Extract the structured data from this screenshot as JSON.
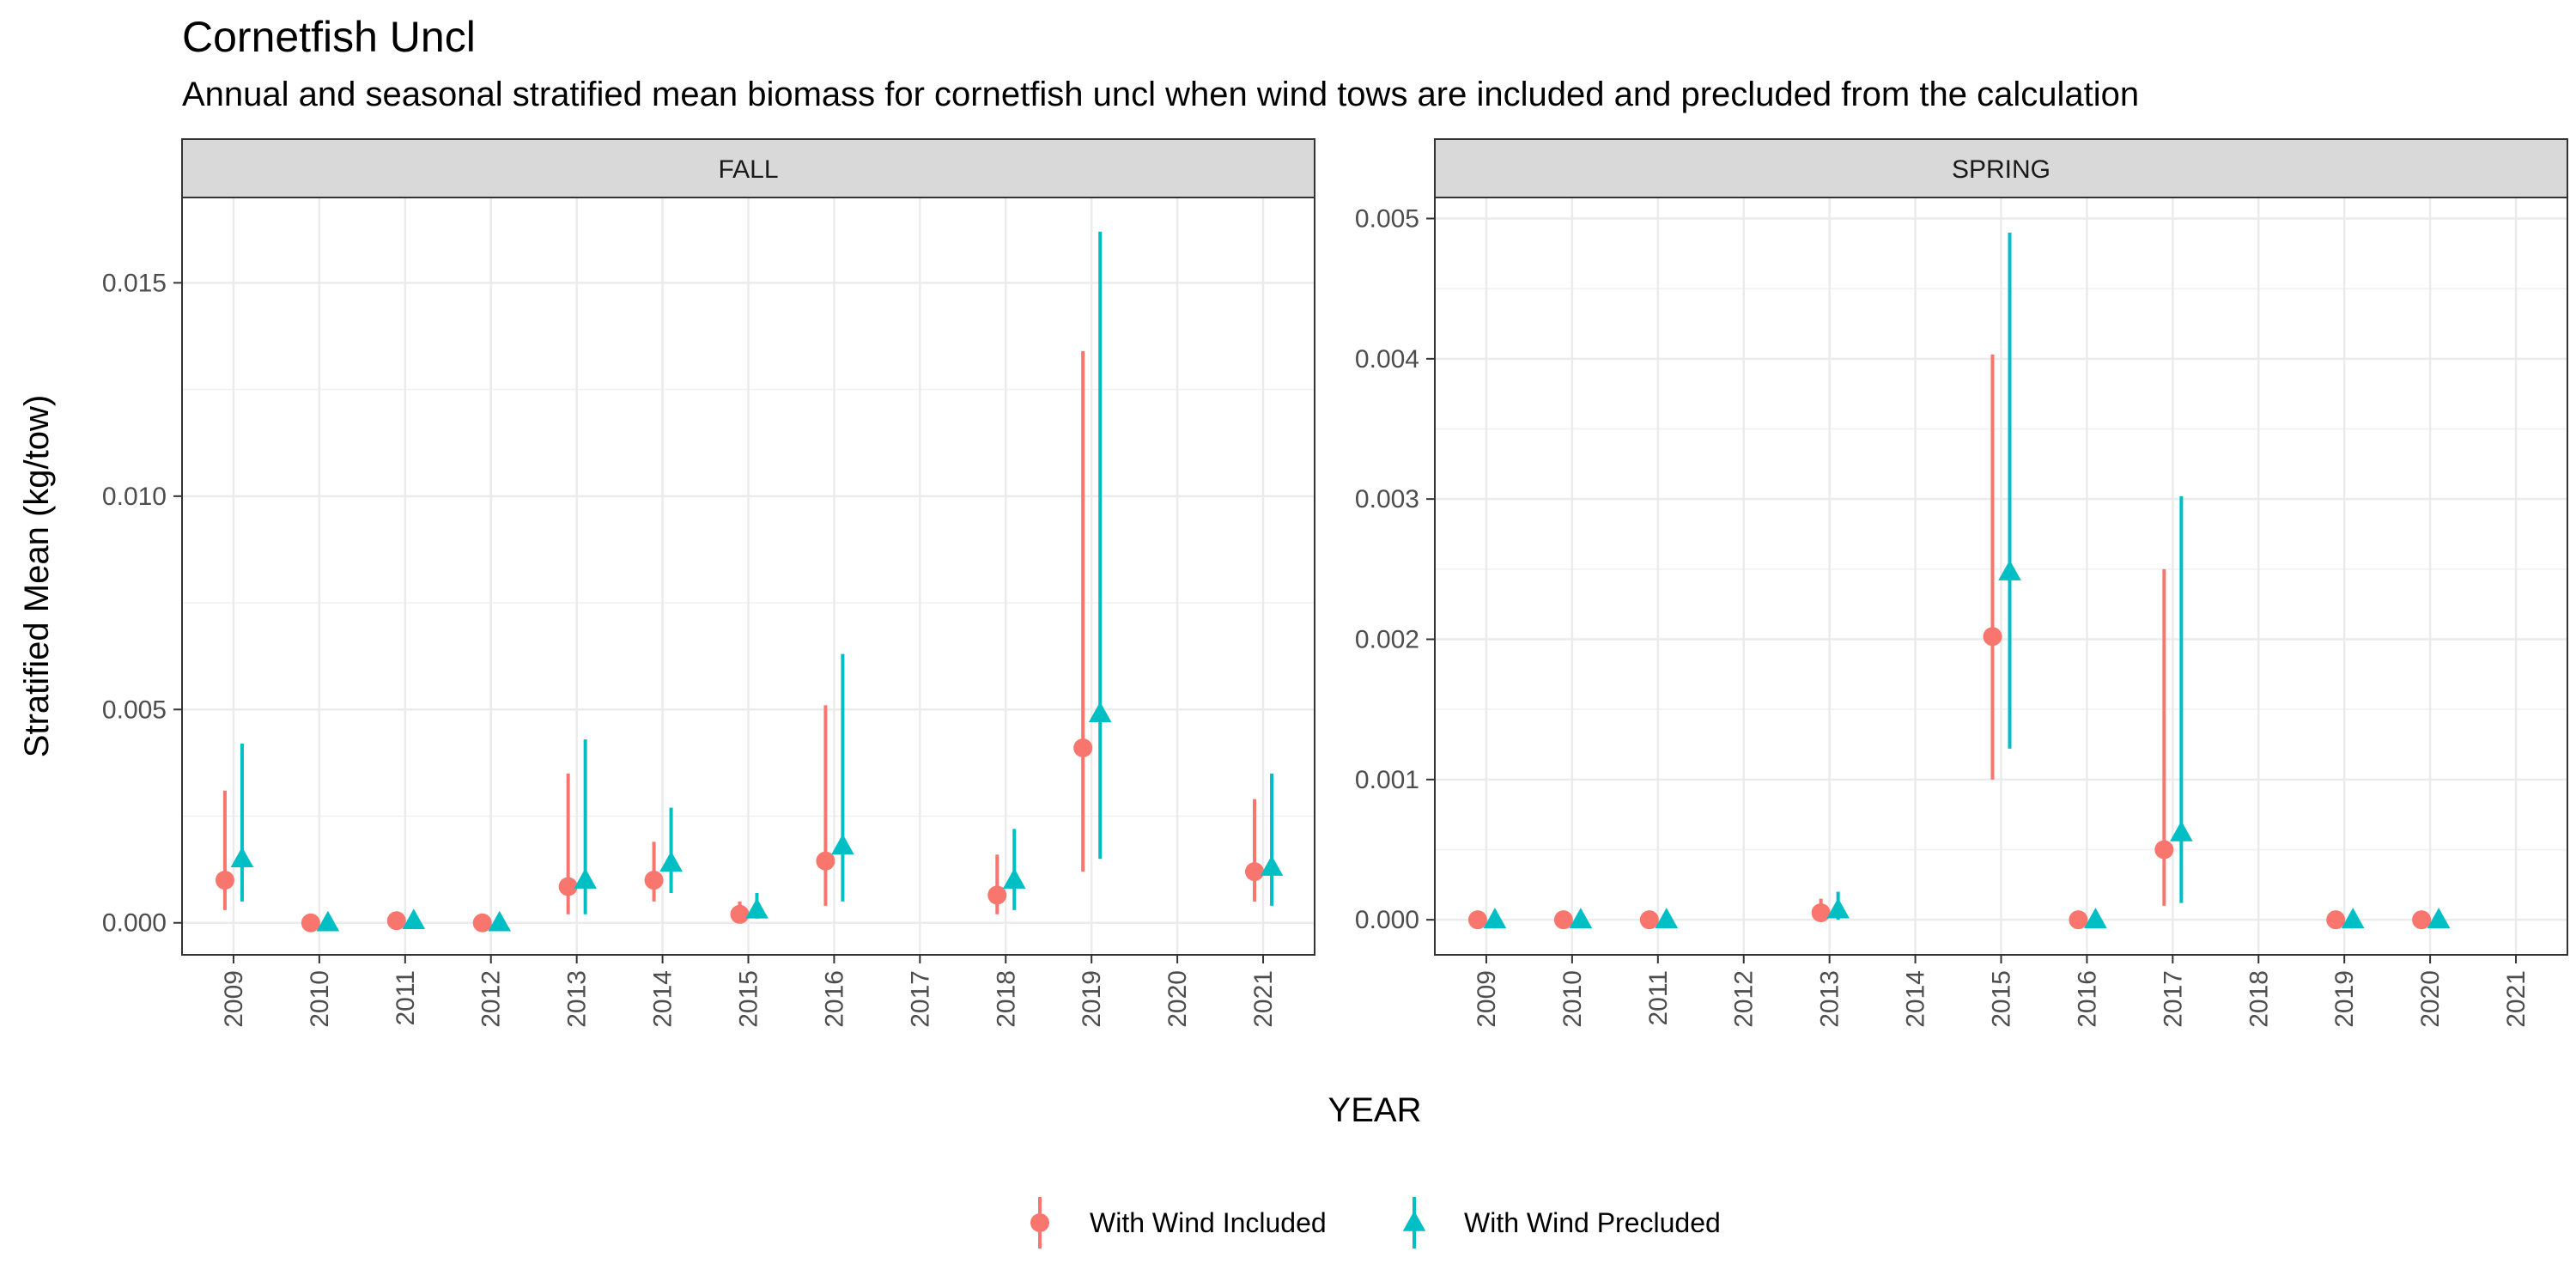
{
  "title": "Cornetfish Uncl",
  "subtitle": "Annual and seasonal stratified mean biomass for cornetfish uncl when wind tows are included and precluded from the calculation",
  "chart_data": {
    "type": "scatter",
    "xlabel": "YEAR",
    "ylabel": "Stratified Mean (kg/tow)",
    "grid": true,
    "legend_position": "bottom",
    "series_styles": [
      {
        "name": "With Wind Included",
        "color": "#F8766D",
        "marker": "circle"
      },
      {
        "name": "With Wind Precluded",
        "color": "#00BFC4",
        "marker": "triangle"
      }
    ],
    "panels": [
      {
        "strip": "FALL",
        "ylim": [
          -0.00075,
          0.017
        ],
        "yticks": [
          0.0,
          0.005,
          0.01,
          0.015
        ],
        "ytick_labels": [
          "0.000",
          "0.005",
          "0.010",
          "0.015"
        ],
        "x_categories": [
          "2009",
          "2010",
          "2011",
          "2012",
          "2013",
          "2014",
          "2015",
          "2016",
          "2017",
          "2018",
          "2019",
          "2020",
          "2021"
        ],
        "series": [
          {
            "name": "With Wind Included",
            "points": [
              {
                "x": "2009",
                "y": 0.001,
                "lo": 0.0003,
                "hi": 0.0031
              },
              {
                "x": "2010",
                "y": 0.0,
                "lo": 0.0,
                "hi": 0.0
              },
              {
                "x": "2011",
                "y": 5e-05,
                "lo": 5e-05,
                "hi": 5e-05
              },
              {
                "x": "2012",
                "y": 0.0,
                "lo": 0.0,
                "hi": 0.0
              },
              {
                "x": "2013",
                "y": 0.00085,
                "lo": 0.0002,
                "hi": 0.0035
              },
              {
                "x": "2014",
                "y": 0.001,
                "lo": 0.0005,
                "hi": 0.0019
              },
              {
                "x": "2015",
                "y": 0.0002,
                "lo": 0.0001,
                "hi": 0.0005
              },
              {
                "x": "2016",
                "y": 0.00145,
                "lo": 0.0004,
                "hi": 0.0051
              },
              {
                "x": "2018",
                "y": 0.00065,
                "lo": 0.0002,
                "hi": 0.0016
              },
              {
                "x": "2019",
                "y": 0.0041,
                "lo": 0.0012,
                "hi": 0.0134
              },
              {
                "x": "2021",
                "y": 0.0012,
                "lo": 0.0005,
                "hi": 0.0029
              }
            ]
          },
          {
            "name": "With Wind Precluded",
            "points": [
              {
                "x": "2009",
                "y": 0.0015,
                "lo": 0.0005,
                "hi": 0.0042
              },
              {
                "x": "2010",
                "y": 0.0,
                "lo": 0.0,
                "hi": 0.0
              },
              {
                "x": "2011",
                "y": 5e-05,
                "lo": 5e-05,
                "hi": 5e-05
              },
              {
                "x": "2012",
                "y": 0.0,
                "lo": 0.0,
                "hi": 0.0
              },
              {
                "x": "2013",
                "y": 0.001,
                "lo": 0.0002,
                "hi": 0.0043
              },
              {
                "x": "2014",
                "y": 0.0014,
                "lo": 0.0007,
                "hi": 0.0027
              },
              {
                "x": "2015",
                "y": 0.0003,
                "lo": 0.0001,
                "hi": 0.0007
              },
              {
                "x": "2016",
                "y": 0.0018,
                "lo": 0.0005,
                "hi": 0.0063
              },
              {
                "x": "2018",
                "y": 0.001,
                "lo": 0.0003,
                "hi": 0.0022
              },
              {
                "x": "2019",
                "y": 0.0049,
                "lo": 0.0015,
                "hi": 0.0162
              },
              {
                "x": "2021",
                "y": 0.0013,
                "lo": 0.0004,
                "hi": 0.0035
              }
            ]
          }
        ]
      },
      {
        "strip": "SPRING",
        "ylim": [
          -0.00025,
          0.00515
        ],
        "yticks": [
          0.0,
          0.001,
          0.002,
          0.003,
          0.004,
          0.005
        ],
        "ytick_labels": [
          "0.000",
          "0.001",
          "0.002",
          "0.003",
          "0.004",
          "0.005"
        ],
        "x_categories": [
          "2009",
          "2010",
          "2011",
          "2012",
          "2013",
          "2014",
          "2015",
          "2016",
          "2017",
          "2018",
          "2019",
          "2020",
          "2021"
        ],
        "series": [
          {
            "name": "With Wind Included",
            "points": [
              {
                "x": "2009",
                "y": 0.0,
                "lo": 0.0,
                "hi": 0.0
              },
              {
                "x": "2010",
                "y": 0.0,
                "lo": 0.0,
                "hi": 0.0
              },
              {
                "x": "2011",
                "y": 0.0,
                "lo": 0.0,
                "hi": 0.0
              },
              {
                "x": "2013",
                "y": 5e-05,
                "lo": 0.0,
                "hi": 0.00015
              },
              {
                "x": "2015",
                "y": 0.00202,
                "lo": 0.001,
                "hi": 0.00403
              },
              {
                "x": "2016",
                "y": 0.0,
                "lo": 0.0,
                "hi": 0.0
              },
              {
                "x": "2017",
                "y": 0.0005,
                "lo": 0.0001,
                "hi": 0.0025
              },
              {
                "x": "2019",
                "y": 0.0,
                "lo": 0.0,
                "hi": 0.0
              },
              {
                "x": "2020",
                "y": 0.0,
                "lo": 0.0,
                "hi": 0.0
              }
            ]
          },
          {
            "name": "With Wind Precluded",
            "points": [
              {
                "x": "2009",
                "y": 0.0,
                "lo": 0.0,
                "hi": 0.0
              },
              {
                "x": "2010",
                "y": 0.0,
                "lo": 0.0,
                "hi": 0.0
              },
              {
                "x": "2011",
                "y": 0.0,
                "lo": 0.0,
                "hi": 0.0
              },
              {
                "x": "2013",
                "y": 7e-05,
                "lo": 0.0,
                "hi": 0.0002
              },
              {
                "x": "2015",
                "y": 0.00248,
                "lo": 0.00122,
                "hi": 0.0049
              },
              {
                "x": "2016",
                "y": 0.0,
                "lo": 0.0,
                "hi": 0.0
              },
              {
                "x": "2017",
                "y": 0.00062,
                "lo": 0.00012,
                "hi": 0.00302
              },
              {
                "x": "2019",
                "y": 0.0,
                "lo": 0.0,
                "hi": 0.0
              },
              {
                "x": "2020",
                "y": 0.0,
                "lo": 0.0,
                "hi": 0.0
              }
            ]
          }
        ]
      }
    ]
  }
}
